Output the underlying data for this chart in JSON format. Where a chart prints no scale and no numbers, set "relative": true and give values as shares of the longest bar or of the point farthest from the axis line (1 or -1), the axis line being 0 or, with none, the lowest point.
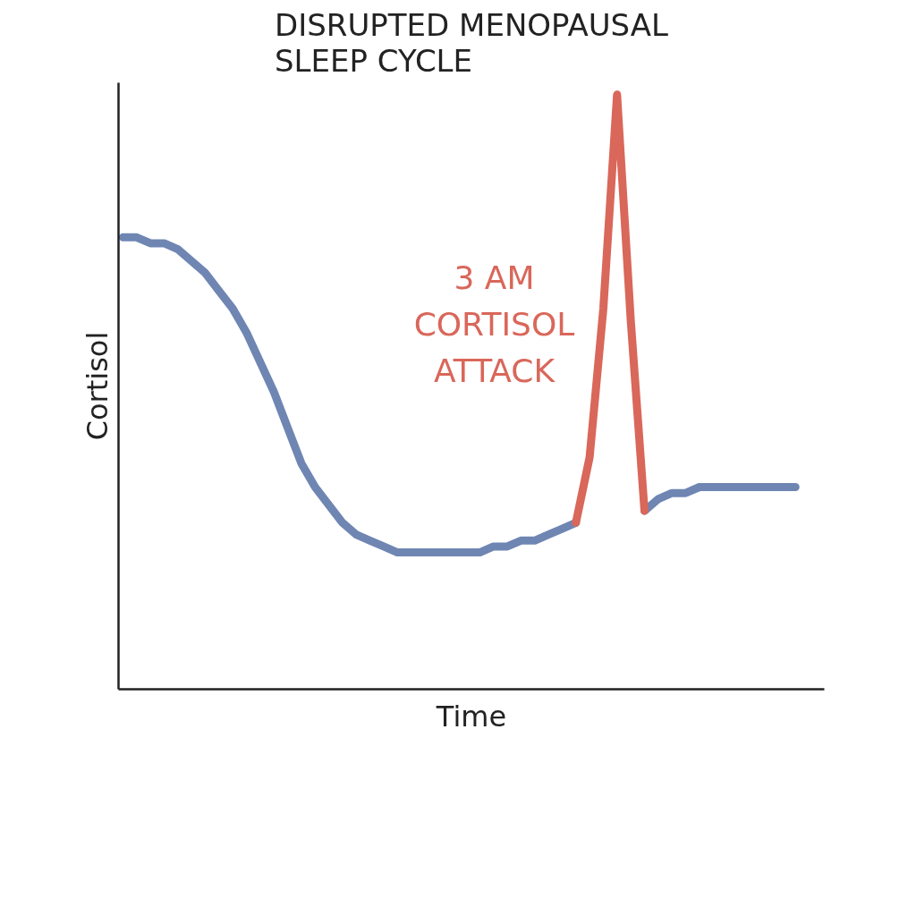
{
  "chart_data": {
    "type": "line",
    "title": "DISRUPTED MENOPAUSAL\nSLEEP CYCLE",
    "xlabel": "Time",
    "ylabel": "Cortisol",
    "relative": true,
    "grid": false,
    "categories": [
      null,
      null,
      null,
      null,
      null,
      null,
      null,
      null,
      null,
      null,
      null,
      null,
      null,
      null,
      null,
      null,
      null,
      null,
      null,
      null,
      null,
      null,
      null,
      null,
      null,
      null,
      null,
      null,
      null,
      null,
      null,
      null,
      null,
      null,
      null,
      null,
      null,
      null,
      null,
      null,
      null,
      null,
      null,
      null,
      null,
      null,
      null,
      null,
      null,
      null
    ],
    "series": [
      {
        "color": "#6f86b3",
        "values": [
          0.76,
          0.76,
          0.75,
          0.75,
          0.74,
          0.72,
          0.7,
          0.67,
          0.64,
          0.6,
          0.55,
          0.5,
          0.44,
          0.38,
          0.34,
          0.31,
          0.28,
          0.26,
          0.25,
          0.24,
          0.23,
          0.23,
          0.23,
          0.23,
          0.23,
          0.23,
          0.23,
          0.24,
          0.24,
          0.25,
          0.25,
          0.26,
          0.27,
          0.28,
          null,
          null,
          null,
          null,
          0.3,
          0.32,
          0.33,
          0.33,
          0.34,
          0.34,
          0.34,
          0.34,
          0.34,
          0.34,
          0.34,
          0.34
        ]
      },
      {
        "color": "#d9675a",
        "values": [
          null,
          null,
          null,
          null,
          null,
          null,
          null,
          null,
          null,
          null,
          null,
          null,
          null,
          null,
          null,
          null,
          null,
          null,
          null,
          null,
          null,
          null,
          null,
          null,
          null,
          null,
          null,
          null,
          null,
          null,
          null,
          null,
          null,
          0.28,
          0.39,
          0.64,
          1.0,
          0.62,
          0.3,
          null,
          null,
          null,
          null,
          null,
          null,
          null,
          null,
          null,
          null,
          null
        ]
      }
    ],
    "annotations": [
      "3 AM\nCORTISOL\nATTACK"
    ]
  }
}
